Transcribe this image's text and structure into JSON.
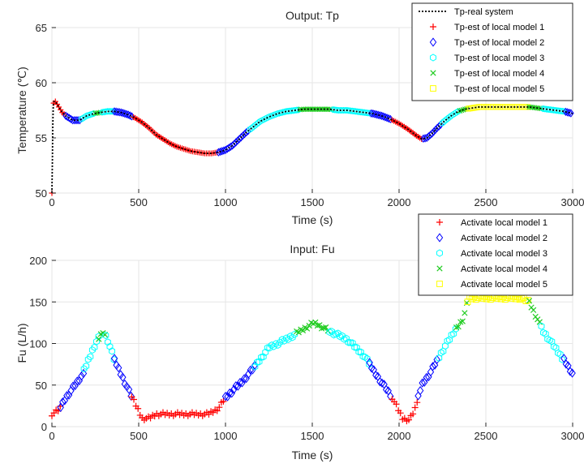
{
  "colors": {
    "model1": "#ff0000",
    "model2": "#0000ff",
    "model3": "#00ffff",
    "model4": "#22cc22",
    "model5": "#ffff00",
    "real": "#000000"
  },
  "chart_data": [
    {
      "type": "scatter",
      "title": "Output: Tp",
      "xlabel": "Time (s)",
      "ylabel": "Temperature (℃)",
      "xlim": [
        0,
        3000
      ],
      "ylim": [
        50,
        65
      ],
      "xticks": [
        0,
        500,
        1000,
        1500,
        2000,
        2500,
        3000
      ],
      "yticks": [
        50,
        55,
        60,
        65
      ],
      "grid": true,
      "legend_position": "top-right",
      "real_series": {
        "name": "Tp-real system",
        "x": [
          0,
          3,
          5,
          8,
          12,
          20,
          40,
          60,
          80,
          100,
          120,
          140,
          160,
          180,
          200,
          240,
          280,
          320,
          360,
          400,
          440,
          480,
          520,
          560,
          600,
          640,
          680,
          720,
          760,
          800,
          840,
          880,
          920,
          960,
          1000,
          1040,
          1080,
          1120,
          1160,
          1200,
          1250,
          1300,
          1350,
          1400,
          1450,
          1500,
          1550,
          1600,
          1650,
          1700,
          1750,
          1800,
          1850,
          1900,
          1950,
          2000,
          2050,
          2100,
          2130,
          2160,
          2190,
          2220,
          2260,
          2300,
          2340,
          2380,
          2420,
          2460,
          2500,
          2550,
          2600,
          2650,
          2700,
          2750,
          2800,
          2850,
          2900,
          2950,
          3000
        ],
        "y": [
          50.0,
          53.0,
          56.0,
          58.0,
          58.3,
          58.3,
          57.8,
          57.3,
          57.0,
          56.8,
          56.6,
          56.6,
          56.6,
          56.8,
          57.0,
          57.2,
          57.3,
          57.4,
          57.4,
          57.3,
          57.1,
          56.8,
          56.4,
          55.9,
          55.3,
          54.9,
          54.5,
          54.2,
          54.0,
          53.8,
          53.7,
          53.6,
          53.6,
          53.7,
          53.9,
          54.3,
          54.9,
          55.5,
          56.0,
          56.5,
          56.9,
          57.2,
          57.4,
          57.5,
          57.6,
          57.6,
          57.6,
          57.6,
          57.5,
          57.5,
          57.4,
          57.3,
          57.2,
          57.0,
          56.7,
          56.3,
          55.8,
          55.2,
          54.9,
          55.0,
          55.4,
          55.9,
          56.5,
          57.0,
          57.4,
          57.6,
          57.7,
          57.8,
          57.8,
          57.8,
          57.8,
          57.8,
          57.8,
          57.8,
          57.7,
          57.6,
          57.5,
          57.4,
          57.2
        ]
      },
      "segments": [
        {
          "model": 1,
          "x0": 0,
          "x1": 80
        },
        {
          "model": 2,
          "x0": 80,
          "x1": 170
        },
        {
          "model": 3,
          "x0": 170,
          "x1": 250
        },
        {
          "model": 4,
          "x0": 250,
          "x1": 290
        },
        {
          "model": 3,
          "x0": 290,
          "x1": 360
        },
        {
          "model": 2,
          "x0": 360,
          "x1": 470
        },
        {
          "model": 1,
          "x0": 470,
          "x1": 960
        },
        {
          "model": 2,
          "x0": 960,
          "x1": 1140
        },
        {
          "model": 3,
          "x0": 1140,
          "x1": 1430
        },
        {
          "model": 4,
          "x0": 1430,
          "x1": 1620
        },
        {
          "model": 3,
          "x0": 1620,
          "x1": 1840
        },
        {
          "model": 2,
          "x0": 1840,
          "x1": 1960
        },
        {
          "model": 1,
          "x0": 1960,
          "x1": 2140
        },
        {
          "model": 2,
          "x0": 2140,
          "x1": 2250
        },
        {
          "model": 3,
          "x0": 2250,
          "x1": 2350
        },
        {
          "model": 4,
          "x0": 2350,
          "x1": 2400
        },
        {
          "model": 5,
          "x0": 2400,
          "x1": 2750
        },
        {
          "model": 4,
          "x0": 2750,
          "x1": 2830
        },
        {
          "model": 3,
          "x0": 2830,
          "x1": 2960
        },
        {
          "model": 2,
          "x0": 2960,
          "x1": 3000
        }
      ],
      "legend": [
        "Tp-real system",
        "Tp-est of local model 1",
        "Tp-est of local model 2",
        "Tp-est of local model 3",
        "Tp-est of local model 4",
        "Tp-est of local model 5"
      ]
    },
    {
      "type": "scatter",
      "title": "Input: Fu",
      "xlabel": "Time (s)",
      "ylabel": "Fu (L/h)",
      "xlim": [
        0,
        3000
      ],
      "ylim": [
        0,
        200
      ],
      "xticks": [
        0,
        500,
        1000,
        1500,
        2000,
        2500,
        3000
      ],
      "yticks": [
        0,
        50,
        100,
        150,
        200
      ],
      "grid": true,
      "legend_position": "top-right",
      "path": {
        "x": [
          0,
          40,
          80,
          170,
          250,
          295,
          320,
          360,
          450,
          520,
          560,
          600,
          700,
          800,
          900,
          960,
          1000,
          1100,
          1160,
          1250,
          1350,
          1430,
          1510,
          1600,
          1700,
          1800,
          1860,
          1960,
          2020,
          2060,
          2090,
          2130,
          2180,
          2260,
          2320,
          2370,
          2400,
          2500,
          2600,
          2700,
          2750,
          2830,
          2950,
          3000
        ],
        "y": [
          15,
          20,
          35,
          60,
          100,
          115,
          105,
          80,
          40,
          10,
          10,
          15,
          15,
          15,
          15,
          22,
          35,
          55,
          70,
          95,
          105,
          115,
          125,
          115,
          105,
          85,
          65,
          35,
          10,
          8,
          20,
          50,
          65,
          95,
          115,
          130,
          155,
          155,
          155,
          155,
          150,
          115,
          80,
          63
        ]
      },
      "segments": [
        {
          "model": 1,
          "x0": 0,
          "x1": 50
        },
        {
          "model": 2,
          "x0": 50,
          "x1": 185
        },
        {
          "model": 3,
          "x0": 185,
          "x1": 270
        },
        {
          "model": 4,
          "x0": 270,
          "x1": 310
        },
        {
          "model": 3,
          "x0": 310,
          "x1": 360
        },
        {
          "model": 2,
          "x0": 360,
          "x1": 460
        },
        {
          "model": 1,
          "x0": 460,
          "x1": 1000
        },
        {
          "model": 2,
          "x0": 1000,
          "x1": 1170
        },
        {
          "model": 3,
          "x0": 1170,
          "x1": 1410
        },
        {
          "model": 4,
          "x0": 1410,
          "x1": 1600
        },
        {
          "model": 3,
          "x0": 1600,
          "x1": 1830
        },
        {
          "model": 2,
          "x0": 1830,
          "x1": 1960
        },
        {
          "model": 1,
          "x0": 1960,
          "x1": 2110
        },
        {
          "model": 2,
          "x0": 2110,
          "x1": 2230
        },
        {
          "model": 3,
          "x0": 2230,
          "x1": 2330
        },
        {
          "model": 4,
          "x0": 2330,
          "x1": 2395
        },
        {
          "model": 5,
          "x0": 2395,
          "x1": 2750
        },
        {
          "model": 4,
          "x0": 2750,
          "x1": 2820
        },
        {
          "model": 3,
          "x0": 2820,
          "x1": 2950
        },
        {
          "model": 2,
          "x0": 2950,
          "x1": 3000
        }
      ],
      "legend": [
        "Activate local model 1",
        "Activate local model 2",
        "Activate local model 3",
        "Activate local model 4",
        "Activate local model 5"
      ]
    }
  ]
}
